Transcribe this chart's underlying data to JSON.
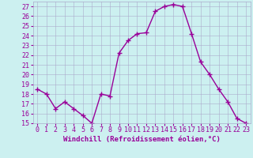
{
  "x": [
    0,
    1,
    2,
    3,
    4,
    5,
    6,
    7,
    8,
    9,
    10,
    11,
    12,
    13,
    14,
    15,
    16,
    17,
    18,
    19,
    20,
    21,
    22,
    23
  ],
  "y": [
    18.5,
    18.0,
    16.5,
    17.2,
    16.5,
    15.8,
    15.0,
    18.0,
    17.8,
    22.2,
    23.5,
    24.2,
    24.3,
    26.5,
    27.0,
    27.2,
    27.0,
    24.2,
    21.3,
    20.0,
    18.5,
    17.2,
    15.5,
    15.0
  ],
  "line_color": "#990099",
  "marker": "+",
  "marker_size": 4,
  "bg_color": "#ccf0f0",
  "grid_color": "#aaaacc",
  "xlabel": "Windchill (Refroidissement éolien,°C)",
  "xlim": [
    -0.5,
    23.5
  ],
  "ylim": [
    15,
    27.5
  ],
  "yticks": [
    15,
    16,
    17,
    18,
    19,
    20,
    21,
    22,
    23,
    24,
    25,
    26,
    27
  ],
  "xticks": [
    0,
    1,
    2,
    3,
    4,
    5,
    6,
    7,
    8,
    9,
    10,
    11,
    12,
    13,
    14,
    15,
    16,
    17,
    18,
    19,
    20,
    21,
    22,
    23
  ],
  "tick_color": "#990099",
  "axis_label_color": "#990099",
  "xlabel_fontsize": 6.5,
  "tick_fontsize": 6.0,
  "line_width": 1.0,
  "marker_color": "#990099"
}
